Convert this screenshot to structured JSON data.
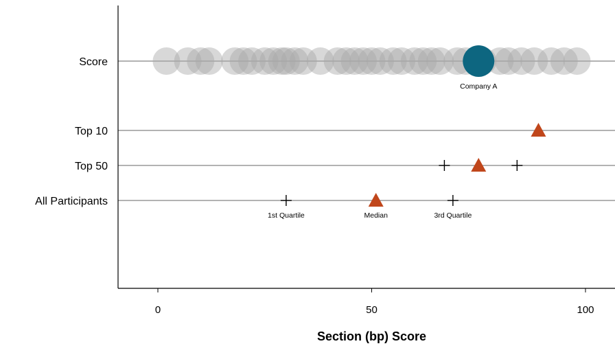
{
  "chart_data": {
    "type": "scatter",
    "title": "",
    "xlabel": "Section (bp) Score",
    "xlim": [
      -9,
      107
    ],
    "xticks": [
      0,
      50,
      100
    ],
    "xtick_labels": [
      "0",
      "50",
      "100"
    ],
    "grid": false,
    "rows": [
      "Score",
      "Top 10",
      "Top 50",
      "All Participants"
    ],
    "participant_scores": [
      2,
      7,
      10,
      12,
      18,
      20,
      22,
      25,
      27,
      29,
      30,
      32,
      34,
      38,
      42,
      44,
      46,
      48,
      50,
      52,
      55,
      57,
      60,
      62,
      64,
      66,
      70,
      72,
      76,
      80,
      82,
      85,
      88,
      92,
      95,
      98
    ],
    "highlight": {
      "label": "Company A",
      "value": 75,
      "color": "#0d6680"
    },
    "markers": [
      {
        "row": "Top 10",
        "median": 89
      },
      {
        "row": "Top 50",
        "median": 75,
        "q1": 67,
        "q3": 84
      },
      {
        "row": "All Participants",
        "median": 51,
        "q1": 30,
        "q3": 69
      }
    ],
    "annotations": {
      "q1": "1st Quartile",
      "median": "Median",
      "q3": "3rd Quartile"
    },
    "colors": {
      "participant": "#a9a9a9",
      "median": "#c0461b",
      "axis": "#000000",
      "rowline": "#666666"
    }
  }
}
